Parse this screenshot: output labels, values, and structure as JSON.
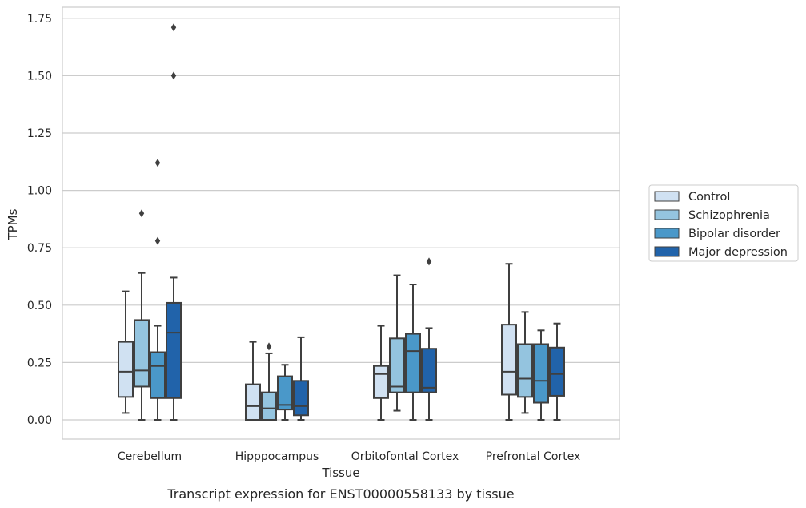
{
  "caption": "Transcript expression for ENST00000558133 by tissue",
  "chart_data": {
    "type": "box",
    "title": "",
    "xlabel": "Tissue",
    "ylabel": "TPMs",
    "ylim": [
      -0.08,
      1.81
    ],
    "yticks": [
      0.0,
      0.25,
      0.5,
      0.75,
      1.0,
      1.25,
      1.5,
      1.75
    ],
    "ytick_labels": [
      "0.00",
      "0.25",
      "0.50",
      "0.75",
      "1.00",
      "1.25",
      "1.50",
      "1.75"
    ],
    "grid": "horizontal",
    "legend_position": "right",
    "categories": [
      "Cerebellum",
      "Hipppocampus",
      "Orbitofontal Cortex",
      "Prefrontal Cortex"
    ],
    "series": [
      {
        "name": "Control",
        "color": "#d0e1f2",
        "boxes": [
          {
            "whislo": 0.03,
            "q1": 0.1,
            "med": 0.21,
            "q3": 0.34,
            "whishi": 0.56,
            "fliers": []
          },
          {
            "whislo": 0.0,
            "q1": 0.0,
            "med": 0.06,
            "q3": 0.155,
            "whishi": 0.34,
            "fliers": []
          },
          {
            "whislo": 0.0,
            "q1": 0.095,
            "med": 0.2,
            "q3": 0.235,
            "whishi": 0.41,
            "fliers": []
          },
          {
            "whislo": 0.0,
            "q1": 0.11,
            "med": 0.21,
            "q3": 0.415,
            "whishi": 0.68,
            "fliers": []
          }
        ]
      },
      {
        "name": "Schizophrenia",
        "color": "#94c4df",
        "boxes": [
          {
            "whislo": 0.0,
            "q1": 0.145,
            "med": 0.215,
            "q3": 0.435,
            "whishi": 0.64,
            "fliers": [
              0.9
            ]
          },
          {
            "whislo": 0.0,
            "q1": 0.0,
            "med": 0.05,
            "q3": 0.12,
            "whishi": 0.29,
            "fliers": [
              0.32
            ]
          },
          {
            "whislo": 0.04,
            "q1": 0.12,
            "med": 0.145,
            "q3": 0.355,
            "whishi": 0.63,
            "fliers": []
          },
          {
            "whislo": 0.03,
            "q1": 0.1,
            "med": 0.18,
            "q3": 0.33,
            "whishi": 0.47,
            "fliers": []
          }
        ]
      },
      {
        "name": "Bipolar disorder",
        "color": "#4a98c9",
        "boxes": [
          {
            "whislo": 0.0,
            "q1": 0.095,
            "med": 0.235,
            "q3": 0.295,
            "whishi": 0.41,
            "fliers": [
              0.78,
              1.12
            ]
          },
          {
            "whislo": 0.0,
            "q1": 0.045,
            "med": 0.065,
            "q3": 0.19,
            "whishi": 0.24,
            "fliers": []
          },
          {
            "whislo": 0.0,
            "q1": 0.12,
            "med": 0.3,
            "q3": 0.375,
            "whishi": 0.59,
            "fliers": []
          },
          {
            "whislo": 0.0,
            "q1": 0.075,
            "med": 0.17,
            "q3": 0.33,
            "whishi": 0.39,
            "fliers": []
          }
        ]
      },
      {
        "name": "Major depression",
        "color": "#2163aa",
        "boxes": [
          {
            "whislo": 0.0,
            "q1": 0.095,
            "med": 0.38,
            "q3": 0.51,
            "whishi": 0.62,
            "fliers": [
              1.5,
              1.71
            ]
          },
          {
            "whislo": 0.0,
            "q1": 0.02,
            "med": 0.06,
            "q3": 0.17,
            "whishi": 0.36,
            "fliers": []
          },
          {
            "whislo": 0.0,
            "q1": 0.12,
            "med": 0.14,
            "q3": 0.31,
            "whishi": 0.4,
            "fliers": [
              0.69
            ]
          },
          {
            "whislo": 0.0,
            "q1": 0.105,
            "med": 0.2,
            "q3": 0.315,
            "whishi": 0.42,
            "fliers": []
          }
        ]
      }
    ]
  }
}
